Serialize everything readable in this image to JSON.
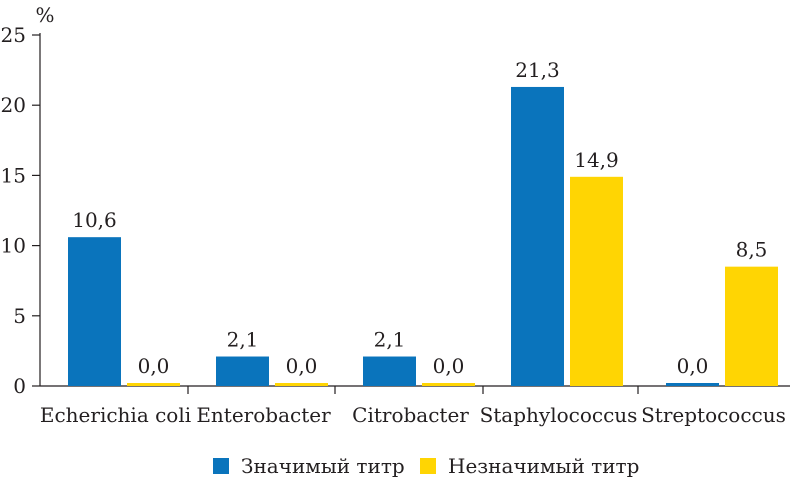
{
  "chart_data": {
    "type": "bar",
    "ylabel": "%",
    "ylim": [
      0,
      25
    ],
    "yticks": [
      0,
      5,
      10,
      15,
      20,
      25
    ],
    "grid": false,
    "legend_position": "bottom",
    "categories": [
      "Echerichia coli",
      "Enterobacter",
      "Citrobacter",
      "Staphylococcus",
      "Streptococcus"
    ],
    "series": [
      {
        "name": "Значимый титр",
        "color": "#0a74bc",
        "values": [
          10.6,
          2.1,
          2.1,
          21.3,
          0.0
        ],
        "labels": [
          "10,6",
          "2,1",
          "2,1",
          "21,3",
          "0,0"
        ]
      },
      {
        "name": "Незначимый титр",
        "color": "#ffd503",
        "values": [
          0.0,
          0.0,
          0.0,
          14.9,
          8.5
        ],
        "labels": [
          "0,0",
          "0,0",
          "0,0",
          "14,9",
          "8,5"
        ]
      }
    ]
  }
}
